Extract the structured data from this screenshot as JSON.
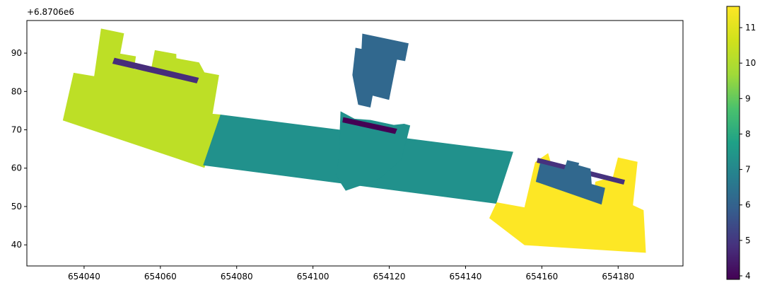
{
  "chart_data": {
    "type": "map",
    "offset_label": "+6.8706e6",
    "x_range": [
      654025,
      654197
    ],
    "y_range": [
      34.5,
      98.5
    ],
    "x_ticks": [
      654040,
      654060,
      654080,
      654100,
      654120,
      654140,
      654160,
      654180
    ],
    "y_ticks": [
      40,
      50,
      60,
      70,
      80,
      90
    ],
    "colorbar": {
      "colormap": "viridis",
      "range": [
        3.9,
        11.6
      ],
      "ticks": [
        4,
        5,
        6,
        7,
        8,
        9,
        10,
        11
      ]
    },
    "polygons": [
      {
        "value": 10.6,
        "color": "#bddf26",
        "points": [
          [
            654034.5,
            72.5
          ],
          [
            654037.3,
            84.8
          ],
          [
            654042.7,
            83.9
          ],
          [
            654044.5,
            96.3
          ],
          [
            654050.4,
            95.1
          ],
          [
            654049.4,
            89.8
          ],
          [
            654053.5,
            89.1
          ],
          [
            654053.0,
            85.8
          ],
          [
            654057.5,
            85.0
          ],
          [
            654058.6,
            90.7
          ],
          [
            654064.1,
            89.7
          ],
          [
            654064.1,
            88.6
          ],
          [
            654070.1,
            87.5
          ],
          [
            654071.5,
            84.9
          ],
          [
            654075.3,
            84.2
          ],
          [
            654073.6,
            74.1
          ],
          [
            654075.8,
            73.9
          ],
          [
            654071.5,
            60.2
          ]
        ]
      },
      {
        "value": 4.8,
        "color": "#472d7b",
        "points": [
          [
            654048.0,
            88.7
          ],
          [
            654070.0,
            83.5
          ],
          [
            654069.5,
            82.2
          ],
          [
            654047.5,
            87.3
          ]
        ]
      },
      {
        "value": 7.9,
        "color": "#21918c",
        "points": [
          [
            654075.8,
            73.9
          ],
          [
            654071.3,
            60.8
          ],
          [
            654148.0,
            50.8
          ],
          [
            654152.4,
            64.2
          ]
        ]
      },
      {
        "value": 7.9,
        "color": "#21918c",
        "points": [
          [
            654107.3,
            74.7
          ],
          [
            654110.9,
            72.8
          ],
          [
            654115.1,
            72.5
          ],
          [
            654121.2,
            71.2
          ],
          [
            654123.9,
            71.5
          ],
          [
            654125.4,
            71.1
          ],
          [
            654123.2,
            62.3
          ],
          [
            654117.4,
            57.2
          ],
          [
            654108.6,
            54.2
          ],
          [
            654106.0,
            58.2
          ],
          [
            654106.8,
            62.2
          ]
        ]
      },
      {
        "value": 3.9,
        "color": "#440154",
        "points": [
          [
            654108.0,
            73.2
          ],
          [
            654122.0,
            70.2
          ],
          [
            654121.5,
            69.0
          ],
          [
            654107.8,
            72.0
          ]
        ]
      },
      {
        "value": 6.1,
        "color": "#31688e",
        "points": [
          [
            654113.0,
            95.0
          ],
          [
            654125.0,
            92.5
          ],
          [
            654124.1,
            88.0
          ],
          [
            654122.0,
            88.4
          ],
          [
            654119.9,
            77.9
          ],
          [
            654115.6,
            79.0
          ],
          [
            654115.0,
            75.9
          ],
          [
            654111.9,
            76.6
          ],
          [
            654110.4,
            84.3
          ],
          [
            654111.2,
            91.3
          ],
          [
            654112.8,
            91.0
          ]
        ]
      },
      {
        "value": 11.6,
        "color": "#fde725",
        "points": [
          [
            654148.2,
            51.0
          ],
          [
            654155.5,
            49.7
          ],
          [
            654158.3,
            61.5
          ],
          [
            654161.6,
            63.8
          ],
          [
            654163.9,
            55.8
          ],
          [
            654173.7,
            53.4
          ],
          [
            654174.1,
            56.4
          ],
          [
            654178.7,
            57.7
          ],
          [
            654180.0,
            62.7
          ],
          [
            654185.0,
            61.6
          ],
          [
            654183.8,
            50.3
          ],
          [
            654186.6,
            49.0
          ],
          [
            654187.2,
            38.0
          ],
          [
            654155.5,
            40.0
          ],
          [
            654146.3,
            47.0
          ]
        ]
      },
      {
        "value": 4.4,
        "color": "#46327e",
        "points": [
          [
            654159.0,
            62.6
          ],
          [
            654181.7,
            56.9
          ],
          [
            654181.4,
            55.8
          ],
          [
            654158.7,
            61.5
          ]
        ]
      },
      {
        "value": 6.1,
        "color": "#31688e",
        "points": [
          [
            654158.5,
            56.5
          ],
          [
            654159.6,
            61.2
          ],
          [
            654165.9,
            59.6
          ],
          [
            654166.7,
            62.0
          ],
          [
            654169.7,
            61.3
          ],
          [
            654169.5,
            60.7
          ],
          [
            654172.7,
            59.8
          ],
          [
            654173.0,
            55.8
          ],
          [
            654176.5,
            54.8
          ],
          [
            654175.6,
            50.6
          ]
        ]
      }
    ]
  }
}
